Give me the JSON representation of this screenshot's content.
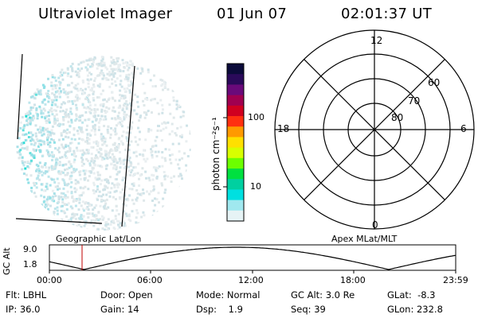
{
  "header": {
    "instrument": "Ultraviolet Imager",
    "date": "01 Jun 07",
    "time": "02:01:37 UT"
  },
  "colorbar": {
    "label": "photon cm⁻²s⁻¹",
    "scale": "log",
    "ticks": [
      "100",
      "10"
    ],
    "colors": [
      "#0b0b3a",
      "#2a0a5a",
      "#6a0a7a",
      "#a00050",
      "#d00020",
      "#ff3010",
      "#ff9a00",
      "#ffe000",
      "#d8ff00",
      "#6cff00",
      "#00e040",
      "#00d0a0",
      "#00e0e0",
      "#a0e8ef",
      "#e6f3f5"
    ]
  },
  "polar_plot": {
    "mlt_labels": [
      "12",
      "18",
      "6",
      "0"
    ],
    "lat_labels": [
      "60",
      "70",
      "80"
    ]
  },
  "altitude_panel": {
    "ylabel": "GC Alt",
    "yticks": [
      "9.0",
      "1.8"
    ],
    "left_caption": "Geographic Lat/Lon",
    "right_caption": "Apex MLat/MLT",
    "xticks": [
      "00:00",
      "06:00",
      "12:00",
      "18:00",
      "23:59"
    ],
    "marker_time": "02:01",
    "marker_color": "#c00000"
  },
  "info": {
    "row1": [
      {
        "label": "Flt:",
        "value": "LBHL"
      },
      {
        "label": "Door:",
        "value": "Open"
      },
      {
        "label": "Mode:",
        "value": "Normal"
      },
      {
        "label": "GC Alt:",
        "value": "3.0 Re"
      },
      {
        "label": "GLat:",
        "value": "-8.3"
      }
    ],
    "row2": [
      {
        "label": "IP:",
        "value": "36.0"
      },
      {
        "label": "Gain:",
        "value": "14"
      },
      {
        "label": "Dsp:",
        "value": "1.9"
      },
      {
        "label": "Seq:",
        "value": "39"
      },
      {
        "label": "GLon:",
        "value": "232.8"
      }
    ]
  }
}
